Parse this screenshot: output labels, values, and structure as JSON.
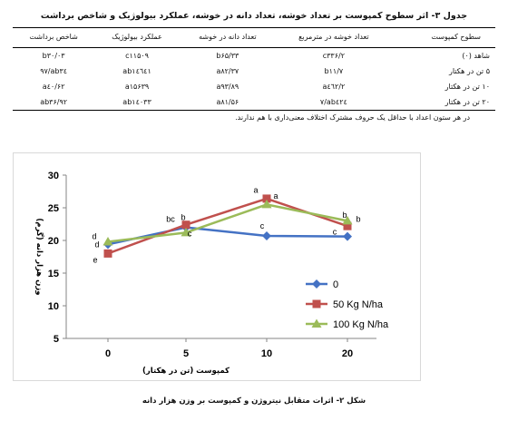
{
  "table": {
    "caption": "جدول ۳- اثر سطوح کمپوست بر تعداد خوشه، تعداد دانه در خوشه، عملکرد بیولوژیک و شاخص برداشت",
    "headers": [
      "سطوح کمپوست",
      "تعداد خوشه در مترمربع",
      "تعداد دانه در خوشه",
      "عملکرد بیولوژیک",
      "شاخص برداشت"
    ],
    "rows": [
      [
        "شاهد (۰)",
        "c۳۳۶/۲",
        "b۶۵/۳۳",
        "c۱۱۵۰۹",
        "b۳۰/۰۳"
      ],
      [
        "۵ تن در هکتار",
        "b۱۱/۷",
        "a۸۲/۳۷",
        "ab۱٤٦٤۱",
        "ab۳٤/۹۷"
      ],
      [
        "۱۰ تن در هکتار",
        "a٤٦۲/۲",
        "a۹۳/۸۹",
        "a۱۵۶۳۹",
        "a٤۰/۶۲"
      ],
      [
        "۲۰ تن در هکتار",
        "ab٤۲٤/۷",
        "a۸۱/۵۶",
        "ab۱٤۰۳۳",
        "ab۳۶/۹۲"
      ]
    ],
    "note": "در هر ستون اعداد با حداقل یک حروف مشترک اختلاف معنی‌داری با هم ندارند."
  },
  "figure": {
    "caption": "شکل ۲- اثرات متقابل نیتروژن و کمپوست بر وزن هزار دانه"
  },
  "chart_data": {
    "type": "line",
    "title": "",
    "xlabel": "کمپوست (تن در هکتار)",
    "ylabel": "وزن هزار دانه (گرم)",
    "categories": [
      "0",
      "5",
      "10",
      "20"
    ],
    "ylim": [
      5,
      30
    ],
    "yticks": [
      "5",
      "10",
      "15",
      "20",
      "25",
      "30"
    ],
    "grid": false,
    "legend_position": "right",
    "series": [
      {
        "name": "0",
        "color": "#4472C4",
        "marker": "diamond",
        "values": [
          19.4,
          22.0,
          20.7,
          20.6
        ],
        "letters": [
          "d",
          "b",
          "c",
          "c"
        ]
      },
      {
        "name": "50 Kg N/ha",
        "color": "#C0504D",
        "marker": "square",
        "values": [
          18.0,
          22.4,
          26.4,
          22.2
        ],
        "letters": [
          "e",
          "bc",
          "a",
          "b"
        ]
      },
      {
        "name": "100 Kg N/ha",
        "color": "#9BBB59",
        "marker": "triangle",
        "values": [
          19.8,
          21.2,
          25.5,
          23.0
        ],
        "letters": [
          "d",
          "c",
          "a",
          "b"
        ]
      }
    ]
  }
}
